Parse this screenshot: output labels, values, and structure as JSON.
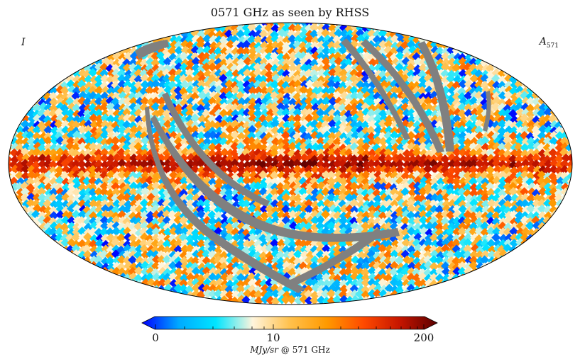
{
  "chart_data": {
    "type": "heatmap",
    "projection": "Mollweide full-sky map",
    "title": "0571 GHz as seen by RHSS",
    "stokes_label": "I",
    "band_label": {
      "symbol": "A",
      "subscript": "571"
    },
    "colorbar": {
      "scale": "non-linear (stretched)",
      "min": 0,
      "max": 200,
      "tick_labels": [
        "0",
        "10",
        "200"
      ],
      "tick_values": [
        0,
        10,
        200
      ],
      "unit_text": "MJy/sr",
      "unit_suffix": "@ 571 GHz",
      "extend": "both",
      "colormap_stops": [
        "#0000ff",
        "#00aaff",
        "#00e5ff",
        "#fff5dc",
        "#ffc14d",
        "#ff9a00",
        "#ff4a00",
        "#c41400",
        "#5a0000"
      ]
    },
    "mask_color": "#808080",
    "features": [
      "Galactic plane: saturated dark-red band across the equator",
      "High-latitude sky: noisy mix of cyan, blue and light-orange pixels",
      "Grey arcs: masked / unobserved scan stripes"
    ]
  }
}
